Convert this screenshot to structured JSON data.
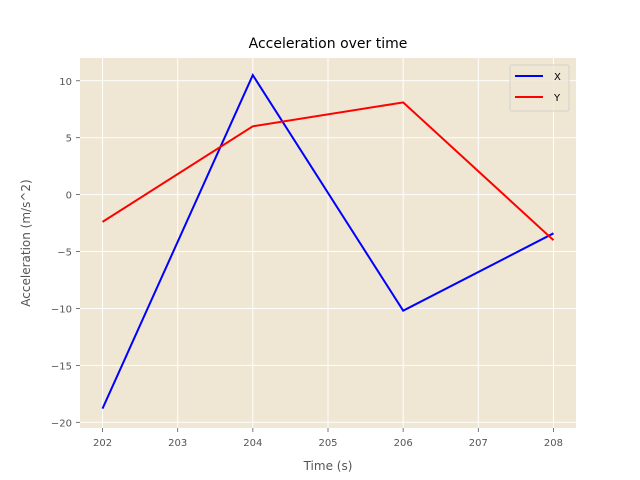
{
  "chart_data": {
    "type": "line",
    "title": "Acceleration over time",
    "xlabel": "Time (s)",
    "ylabel": "Acceleration (m/s^2)",
    "x": [
      202,
      204,
      206,
      208
    ],
    "xlim": [
      201.7,
      208.3
    ],
    "ylim": [
      -20.5,
      12
    ],
    "xticks": [
      202,
      203,
      204,
      205,
      206,
      207,
      208
    ],
    "yticks": [
      -20,
      -15,
      -10,
      -5,
      0,
      5,
      10
    ],
    "xtick_labels": [
      "202",
      "203",
      "204",
      "205",
      "206",
      "207",
      "208"
    ],
    "ytick_labels": [
      "−20",
      "−15",
      "−10",
      "−5",
      "0",
      "5",
      "10"
    ],
    "series": [
      {
        "name": "X",
        "color": "#0000ff",
        "values": [
          -18.8,
          10.5,
          -10.2,
          -3.4
        ]
      },
      {
        "name": "Y",
        "color": "#ff0000",
        "values": [
          -2.4,
          6.0,
          8.1,
          -4.0
        ]
      }
    ],
    "grid": true,
    "legend": "top-right",
    "background": "#efe6d3",
    "grid_color": "#ffffff"
  }
}
